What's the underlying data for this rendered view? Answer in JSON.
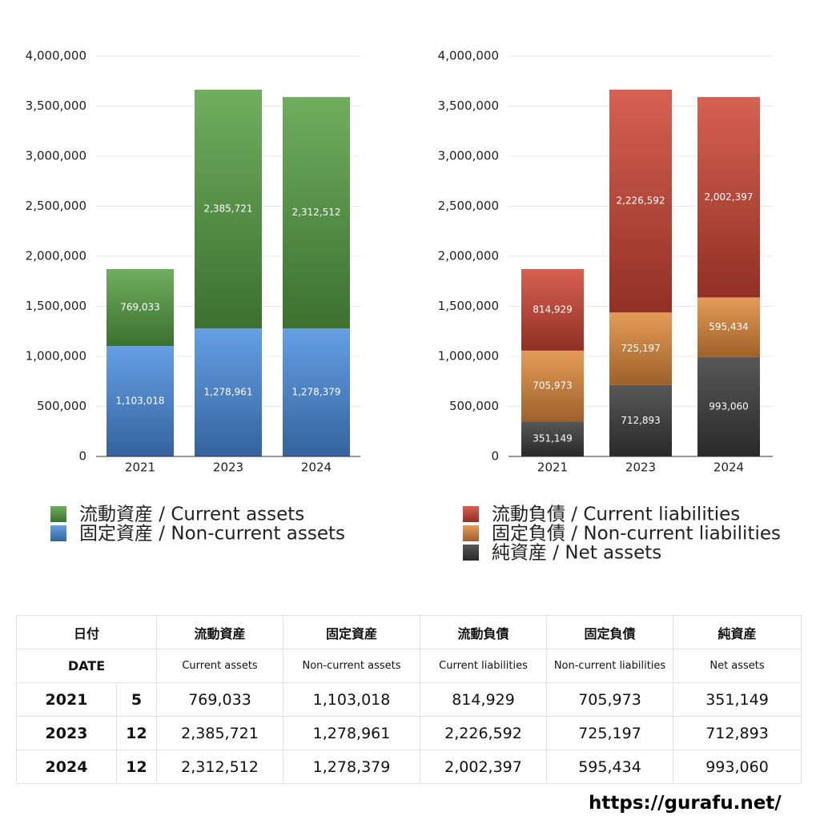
{
  "chart_data": [
    {
      "type": "stacked_bar",
      "categories": [
        "2021",
        "2023",
        "2024"
      ],
      "series": [
        {
          "name": "固定資産 / Non-current assets",
          "color": "#4a8ee0",
          "values": [
            1103018,
            1278961,
            1278379
          ],
          "value_labels": [
            "1,103,018",
            "1,278,961",
            "1,278,379"
          ]
        },
        {
          "name": "流動資産 / Current assets",
          "color": "#55a043",
          "values": [
            769033,
            2385721,
            2312512
          ],
          "value_labels": [
            "769,033",
            "2,385,721",
            "2,312,512"
          ]
        }
      ],
      "ylim": [
        0,
        4000000
      ],
      "yticks": [
        0,
        {
          "value": 500000,
          "label": "500,000"
        },
        {
          "value": 1000000,
          "label": "1,000,000"
        },
        {
          "value": 1500000,
          "label": "1,500,000"
        },
        {
          "value": 2000000,
          "label": "2,000,000"
        },
        {
          "value": 2500000,
          "label": "2,500,000"
        },
        {
          "value": 3000000,
          "label": "3,000,000"
        },
        {
          "value": 3500000,
          "label": "3,500,000"
        },
        {
          "value": 4000000,
          "label": "4,000,000"
        }
      ],
      "grid": true
    },
    {
      "type": "stacked_bar",
      "categories": [
        "2021",
        "2023",
        "2024"
      ],
      "series": [
        {
          "name": "純資産 / Net assets",
          "color": "#3a3a3a",
          "values": [
            351149,
            712893,
            993060
          ],
          "value_labels": [
            "351,149",
            "712,893",
            "993,060"
          ]
        },
        {
          "name": "固定負債 / Non-current liabilities",
          "color": "#e08b3a",
          "values": [
            705973,
            725197,
            595434
          ],
          "value_labels": [
            "705,973",
            "725,197",
            "595,434"
          ]
        },
        {
          "name": "流動負債 / Current liabilities",
          "color": "#cf4533",
          "values": [
            814929,
            2226592,
            2002397
          ],
          "value_labels": [
            "814,929",
            "2,226,592",
            "2,002,397"
          ]
        }
      ],
      "ylim": [
        0,
        4000000
      ],
      "yticks": [
        0,
        {
          "value": 500000,
          "label": "500,000"
        },
        {
          "value": 1000000,
          "label": "1,000,000"
        },
        {
          "value": 1500000,
          "label": "1,500,000"
        },
        {
          "value": 2000000,
          "label": "2,000,000"
        },
        {
          "value": 2500000,
          "label": "2,500,000"
        },
        {
          "value": 3000000,
          "label": "3,000,000"
        },
        {
          "value": 3500000,
          "label": "3,500,000"
        },
        {
          "value": 4000000,
          "label": "4,000,000"
        }
      ],
      "grid": true
    }
  ],
  "table": {
    "header_jp": [
      "日付",
      "流動資産",
      "固定資産",
      "流動負債",
      "固定負債",
      "純資産"
    ],
    "header_en": [
      "DATE",
      "Current assets",
      "Non-current assets",
      "Current liabilities",
      "Non-current liabilities",
      "Net assets"
    ],
    "rows": [
      [
        "2021",
        "5",
        "769,033",
        "1,103,018",
        "814,929",
        "705,973",
        "351,149"
      ],
      [
        "2023",
        "12",
        "2,385,721",
        "1,278,961",
        "2,226,592",
        "725,197",
        "712,893"
      ],
      [
        "2024",
        "12",
        "2,312,512",
        "1,278,379",
        "2,002,397",
        "595,434",
        "993,060"
      ]
    ]
  },
  "footer": "https://gurafu.net/"
}
